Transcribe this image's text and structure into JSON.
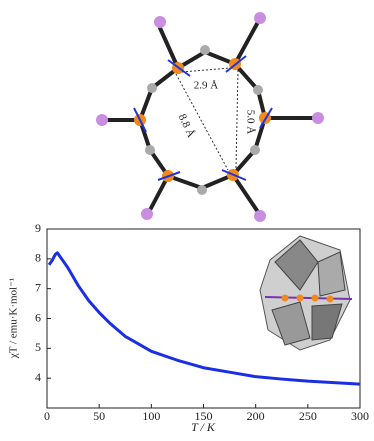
{
  "structure": {
    "distance_labels": [
      "2.9 Å",
      "5.0 Å",
      "8.8 Å"
    ]
  },
  "chart_data": {
    "type": "line",
    "x_label": "T / K",
    "y_label": "χT / emu·K·mol⁻¹",
    "x": [
      2,
      5,
      8,
      10,
      12,
      15,
      20,
      25,
      30,
      40,
      50,
      60,
      75,
      90,
      100,
      125,
      150,
      175,
      200,
      225,
      250,
      275,
      300
    ],
    "values": [
      7.8,
      7.95,
      8.15,
      8.2,
      8.1,
      7.95,
      7.7,
      7.4,
      7.1,
      6.6,
      6.2,
      5.85,
      5.4,
      5.1,
      4.9,
      4.6,
      4.35,
      4.2,
      4.05,
      3.97,
      3.9,
      3.85,
      3.8
    ],
    "color": "#1a2ee6",
    "xlim": [
      0,
      300
    ],
    "xticks": [
      0,
      50,
      100,
      150,
      200,
      250,
      300
    ],
    "ylim": [
      3,
      9
    ],
    "yticks": [
      4,
      5,
      6,
      7,
      8,
      9
    ]
  }
}
